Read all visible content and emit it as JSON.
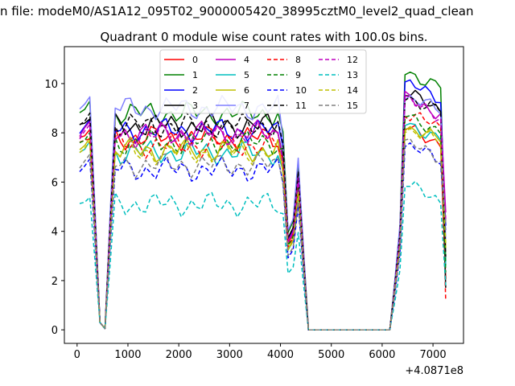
{
  "suptitle": "n file: modeM0/AS1A12_095T02_9000005420_38995cztM0_level2_quad_clean",
  "chart_data": {
    "type": "line",
    "title": "Quadrant 0 module wise count rates with 100.0s bins.",
    "xlabel": "",
    "ylabel": "",
    "x_offset_label": "+4.0871e8",
    "xlim": [
      -250,
      7600
    ],
    "ylim": [
      -0.55,
      11.5
    ],
    "xticks": [
      0,
      1000,
      2000,
      3000,
      4000,
      5000,
      6000,
      7000
    ],
    "yticks": [
      0,
      2,
      4,
      6,
      8,
      10
    ],
    "grid": false,
    "legend_position": "upper-center",
    "x": [
      50,
      150,
      250,
      350,
      450,
      550,
      650,
      750,
      850,
      950,
      1050,
      1150,
      1250,
      1350,
      1450,
      1550,
      1650,
      1750,
      1850,
      1950,
      2050,
      2150,
      2250,
      2350,
      2450,
      2550,
      2650,
      2750,
      2850,
      2950,
      3050,
      3150,
      3250,
      3350,
      3450,
      3550,
      3650,
      3750,
      3850,
      3950,
      4050,
      4150,
      4250,
      4350,
      4450,
      4550,
      4650,
      4750,
      4850,
      4950,
      5050,
      5150,
      5250,
      5350,
      5450,
      5550,
      5650,
      5750,
      5850,
      5950,
      6050,
      6150,
      6250,
      6350,
      6450,
      6550,
      6650,
      6750,
      6850,
      6950,
      7050,
      7150,
      7250
    ],
    "series": [
      {
        "name": "0",
        "color": "#ff0000",
        "dash": "solid",
        "active": 7.8,
        "dip": 6.5,
        "tail": 8.9,
        "post": 8.2,
        "f": 2.3
      },
      {
        "name": "1",
        "color": "#008000",
        "dash": "solid",
        "active": 8.8,
        "dip": 7.9,
        "tail": 10.2,
        "post": 10.5,
        "f": 3.1
      },
      {
        "name": "2",
        "color": "#0000ff",
        "dash": "solid",
        "active": 8.1,
        "dip": 7.5,
        "tail": 9.2,
        "post": 10.0,
        "f": 4.7
      },
      {
        "name": "3",
        "color": "#000000",
        "dash": "solid",
        "active": 8.3,
        "dip": 7.0,
        "tail": 8.8,
        "post": 9.6,
        "f": 1.9
      },
      {
        "name": "4",
        "color": "#bf00bf",
        "dash": "solid",
        "active": 8.0,
        "dip": 7.1,
        "tail": 8.6,
        "post": 9.4,
        "f": 5.3
      },
      {
        "name": "5",
        "color": "#00bfbf",
        "dash": "solid",
        "active": 7.2,
        "dip": 6.4,
        "tail": 7.8,
        "post": 8.4,
        "f": 2.9
      },
      {
        "name": "6",
        "color": "#bfbf00",
        "dash": "solid",
        "active": 7.3,
        "dip": 6.2,
        "tail": 7.7,
        "post": 8.3,
        "f": 3.7
      },
      {
        "name": "7",
        "color": "#8080ff",
        "dash": "solid",
        "active": 9.0,
        "dip": 7.6,
        "tail": 8.9,
        "post": 9.5,
        "f": 4.1
      },
      {
        "name": "8",
        "color": "#ff0000",
        "dash": "dashed",
        "active": 7.5,
        "dip": 6.9,
        "tail": 8.1,
        "post": 8.8,
        "f": 1.3
      },
      {
        "name": "9",
        "color": "#008000",
        "dash": "dashed",
        "active": 7.6,
        "dip": 7.3,
        "tail": 7.7,
        "post": 8.7,
        "f": 2.6
      },
      {
        "name": "10",
        "color": "#0000ff",
        "dash": "dashed",
        "active": 6.5,
        "dip": 6.0,
        "tail": 6.6,
        "post": 7.5,
        "f": 4.4
      },
      {
        "name": "11",
        "color": "#000000",
        "dash": "dashed",
        "active": 8.3,
        "dip": 7.4,
        "tail": 8.7,
        "post": 9.5,
        "f": 3.3
      },
      {
        "name": "12",
        "color": "#bf00bf",
        "dash": "dashed",
        "active": 7.9,
        "dip": 6.8,
        "tail": 8.4,
        "post": 9.3,
        "f": 5.0
      },
      {
        "name": "13",
        "color": "#00bfbf",
        "dash": "dashed",
        "active": 5.1,
        "dip": 4.7,
        "tail": 5.3,
        "post": 5.9,
        "f": 2.0
      },
      {
        "name": "14",
        "color": "#bfbf00",
        "dash": "dashed",
        "active": 7.2,
        "dip": 6.3,
        "tail": 7.6,
        "post": 8.2,
        "f": 3.9
      },
      {
        "name": "15",
        "color": "#808080",
        "dash": "dashed",
        "active": 6.7,
        "dip": 6.0,
        "tail": 6.8,
        "post": 7.6,
        "f": 4.8
      }
    ]
  }
}
